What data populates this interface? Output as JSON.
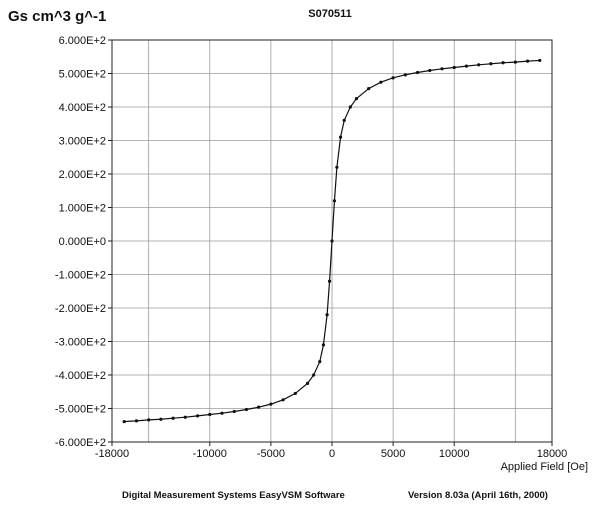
{
  "chart_data": {
    "type": "line",
    "title": "S070511",
    "ylabel": "Gs cm^3 g^-1",
    "xlabel": "Applied Field [Oe]",
    "xlim": [
      -18000,
      18000
    ],
    "ylim": [
      -600,
      600
    ],
    "x_ticks": [
      -18000,
      -10000,
      -5000,
      0,
      5000,
      10000,
      18000
    ],
    "x_tick_labels": [
      "-18000",
      "-10000",
      "-5000",
      "0",
      "5000",
      "10000",
      "18000"
    ],
    "x_grid": [
      -18000,
      -15000,
      -10000,
      -5000,
      0,
      5000,
      10000,
      15000,
      18000
    ],
    "y_ticks": [
      600,
      500,
      400,
      300,
      200,
      100,
      0,
      -100,
      -200,
      -300,
      -400,
      -500,
      -600
    ],
    "y_tick_labels": [
      "6.000E+2",
      "5.000E+2",
      "4.000E+2",
      "3.000E+2",
      "2.000E+2",
      "1.000E+2",
      "0.000E+0",
      "-1.000E+2",
      "-2.000E+2",
      "-3.000E+2",
      "-4.000E+2",
      "-5.000E+2",
      "-6.000E+2"
    ],
    "grid": true,
    "legend": "none",
    "series": [
      {
        "color": "#111111",
        "x": [
          -17000,
          -16000,
          -15000,
          -14000,
          -13000,
          -12000,
          -11000,
          -10000,
          -9000,
          -8000,
          -7000,
          -6000,
          -5000,
          -4000,
          -3000,
          -2000,
          -1500,
          -1000,
          -700,
          -400,
          -200,
          0,
          200,
          400,
          700,
          1000,
          1500,
          2000,
          3000,
          4000,
          5000,
          6000,
          7000,
          8000,
          9000,
          10000,
          11000,
          12000,
          13000,
          14000,
          15000,
          16000,
          17000
        ],
        "y": [
          -539,
          -537,
          -534,
          -532,
          -529,
          -526,
          -522,
          -518,
          -514,
          -509,
          -503,
          -496,
          -487,
          -474,
          -455,
          -425,
          -400,
          -360,
          -310,
          -220,
          -120,
          0,
          120,
          220,
          310,
          360,
          400,
          425,
          455,
          474,
          487,
          496,
          503,
          509,
          514,
          518,
          522,
          526,
          529,
          532,
          534,
          537,
          539
        ]
      }
    ]
  },
  "footer": {
    "left": "Digital Measurement Systems EasyVSM Software",
    "right": "Version 8.03a (April 16th,  2000)"
  }
}
